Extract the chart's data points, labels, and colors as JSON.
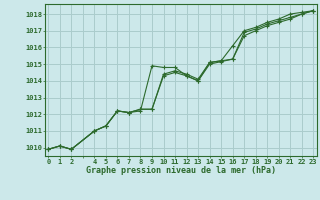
{
  "title": "Graphe pression niveau de la mer (hPa)",
  "bg_color": "#cce8ea",
  "grid_color": "#aacccc",
  "line_color": "#2d6a2d",
  "xlim": [
    -0.3,
    23.3
  ],
  "ylim": [
    1009.5,
    1018.6
  ],
  "xticks": [
    0,
    1,
    2,
    3,
    4,
    5,
    6,
    7,
    8,
    9,
    10,
    11,
    12,
    13,
    14,
    15,
    16,
    17,
    18,
    19,
    20,
    21,
    22,
    23
  ],
  "xtick_labels": [
    "0",
    "1",
    "2",
    "",
    "4",
    "5",
    "6",
    "7",
    "8",
    "9",
    "10",
    "11",
    "12",
    "13",
    "14",
    "15",
    "16",
    "17",
    "18",
    "19",
    "20",
    "21",
    "22",
    "23"
  ],
  "yticks": [
    1010,
    1011,
    1012,
    1013,
    1014,
    1015,
    1016,
    1017,
    1018
  ],
  "series1_x": [
    0,
    1,
    2,
    4,
    5,
    6,
    7,
    8,
    9,
    10,
    11,
    12,
    13,
    14,
    15,
    16,
    17,
    18,
    19,
    20,
    21,
    22,
    23
  ],
  "series1_y": [
    1009.9,
    1010.1,
    1009.9,
    1011.0,
    1011.3,
    1012.2,
    1012.1,
    1012.2,
    1014.9,
    1014.8,
    1014.8,
    1014.3,
    1014.0,
    1015.1,
    1015.2,
    1016.1,
    1017.0,
    1017.2,
    1017.5,
    1017.7,
    1018.0,
    1018.1,
    1018.2
  ],
  "series2_x": [
    0,
    1,
    2,
    4,
    5,
    6,
    7,
    8,
    9,
    10,
    11,
    12,
    13,
    14,
    15,
    16,
    17,
    18,
    19,
    20,
    21,
    22,
    23
  ],
  "series2_y": [
    1009.9,
    1010.1,
    1009.9,
    1011.0,
    1011.3,
    1012.2,
    1012.1,
    1012.3,
    1012.3,
    1014.4,
    1014.6,
    1014.4,
    1014.1,
    1015.1,
    1015.2,
    1015.3,
    1016.9,
    1017.1,
    1017.4,
    1017.6,
    1017.8,
    1018.0,
    1018.2
  ],
  "series3_x": [
    0,
    1,
    2,
    4,
    5,
    6,
    7,
    8,
    9,
    10,
    11,
    12,
    13,
    14,
    15,
    16,
    17,
    18,
    19,
    20,
    21,
    22,
    23
  ],
  "series3_y": [
    1009.9,
    1010.1,
    1009.9,
    1011.0,
    1011.3,
    1012.2,
    1012.1,
    1012.3,
    1012.3,
    1014.3,
    1014.5,
    1014.3,
    1014.0,
    1015.0,
    1015.15,
    1015.3,
    1016.7,
    1017.0,
    1017.3,
    1017.5,
    1017.7,
    1018.0,
    1018.2
  ]
}
